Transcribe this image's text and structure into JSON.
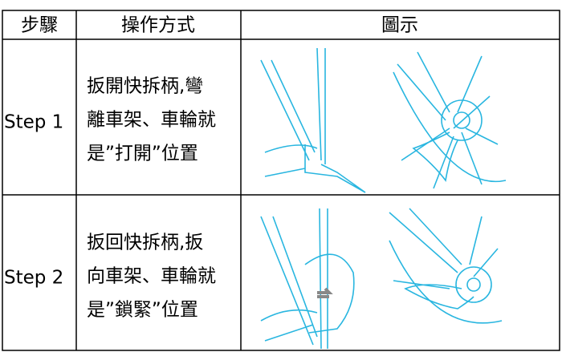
{
  "table": {
    "header": [
      "步驟",
      "操作方式",
      "圖示"
    ],
    "rows": [
      {
        "step": "Step 1",
        "lines": [
          "扳開快拆柄,彎",
          "離車架、車輪就",
          "是”打開”位置"
        ]
      },
      {
        "step": "Step 2",
        "lines": [
          "扳回快拆柄,扳",
          "向車架、車輪就",
          "是”鎖緊”位置"
        ]
      }
    ]
  }
}
